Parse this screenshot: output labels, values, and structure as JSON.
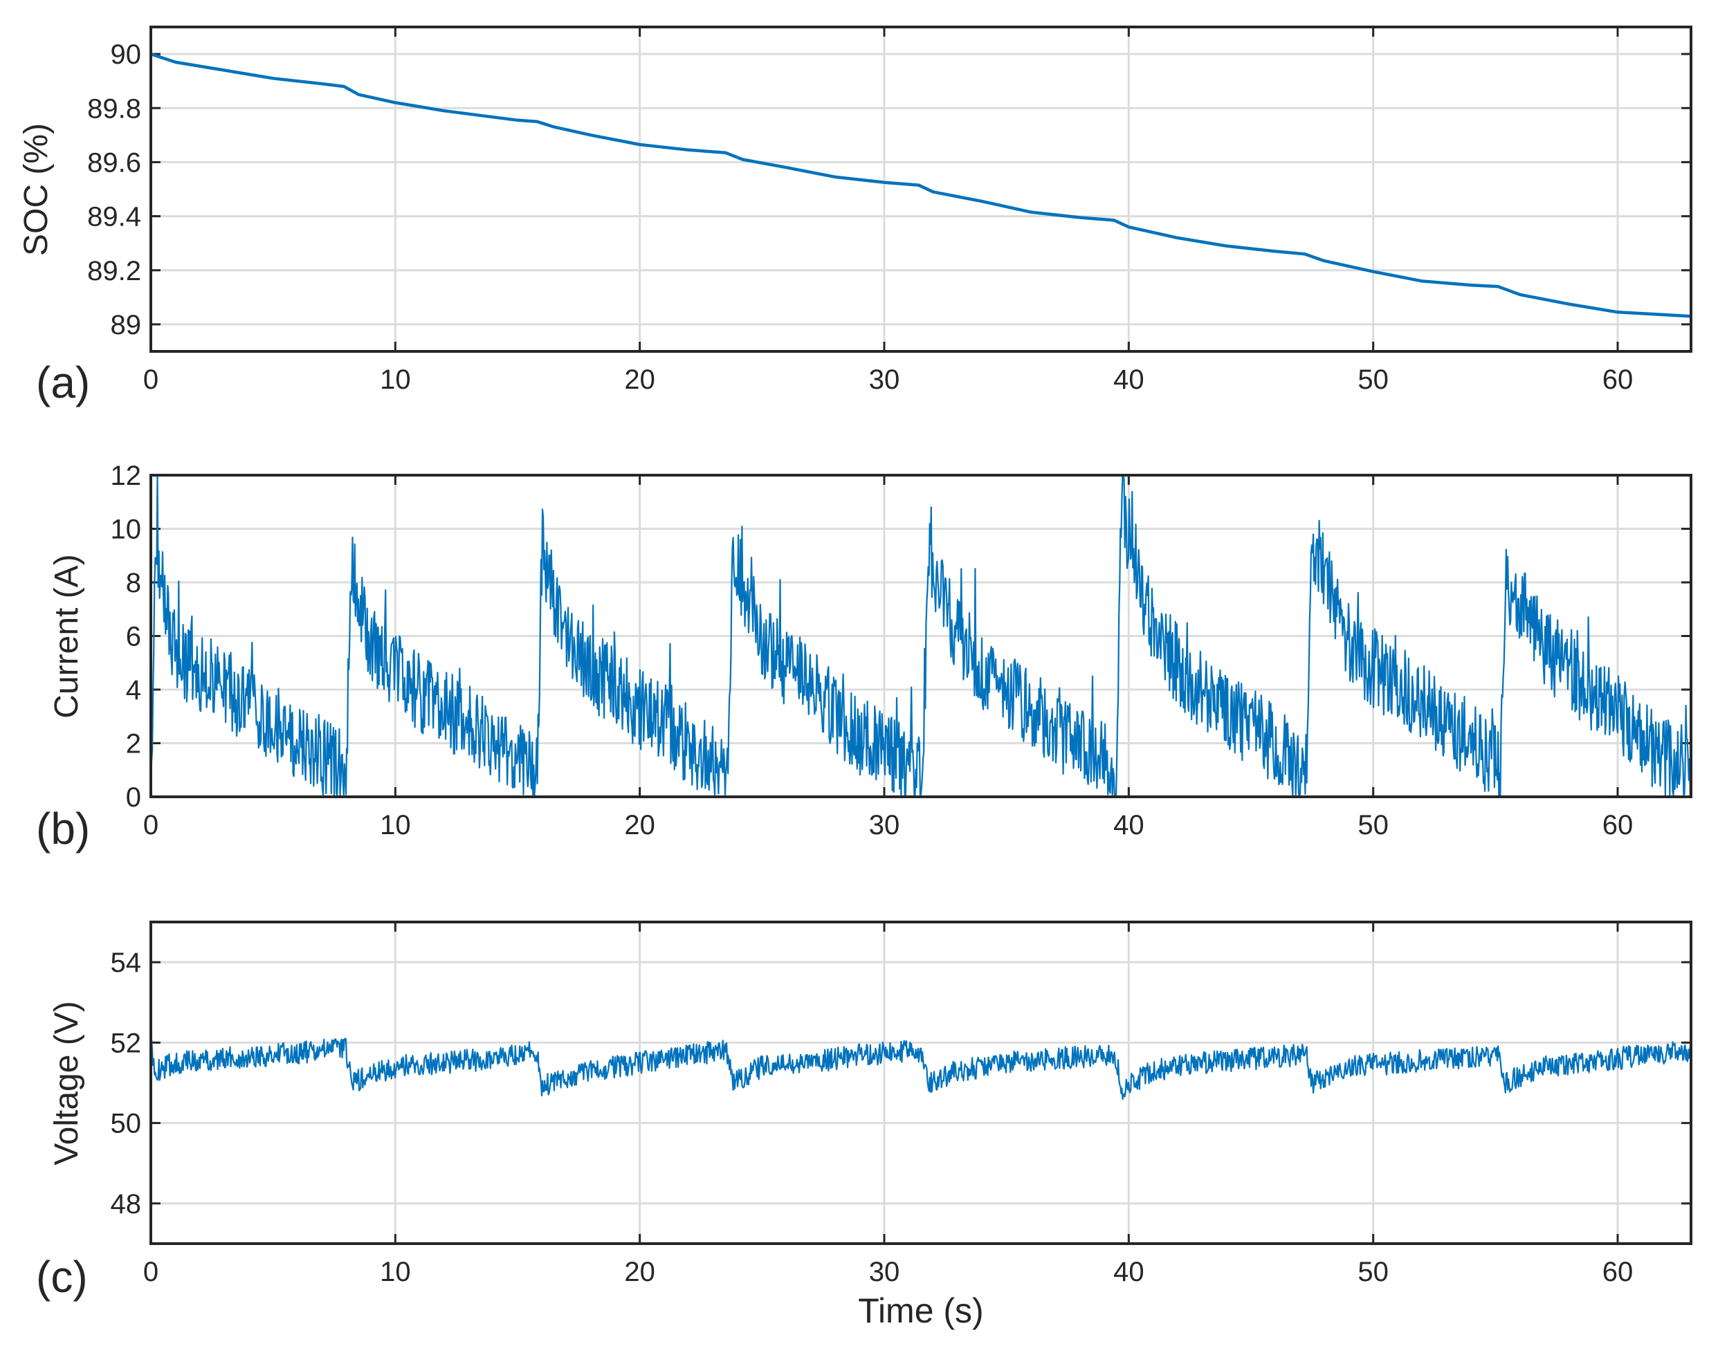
{
  "chart_data": [
    {
      "type": "line",
      "panel_label": "(a)",
      "ylabel": "SOC (%)",
      "xlabel": "",
      "xlim": [
        0,
        63
      ],
      "ylim": [
        88.9,
        90.1
      ],
      "xticks": [
        "0",
        "10",
        "20",
        "30",
        "40",
        "50",
        "60"
      ],
      "yticks": [
        "89",
        "89.2",
        "89.4",
        "89.6",
        "89.8",
        "90"
      ],
      "grid": true,
      "color": "#0072bd",
      "series": [
        {
          "x": [
            0,
            1,
            3,
            5,
            7,
            7.9,
            8.5,
            10,
            12,
            15,
            15.8,
            16.5,
            18,
            20,
            22,
            23.5,
            24.2,
            26,
            28,
            30,
            31.4,
            32,
            34,
            36,
            38,
            39.4,
            40,
            42,
            44,
            46,
            47.2,
            48,
            50,
            52,
            54,
            55.1,
            56,
            58,
            60,
            62,
            63
          ],
          "y": [
            90.0,
            89.97,
            89.94,
            89.91,
            89.89,
            89.88,
            89.85,
            89.82,
            89.79,
            89.755,
            89.75,
            89.73,
            89.7,
            89.665,
            89.645,
            89.635,
            89.61,
            89.58,
            89.545,
            89.525,
            89.515,
            89.49,
            89.455,
            89.415,
            89.395,
            89.385,
            89.36,
            89.32,
            89.29,
            89.27,
            89.26,
            89.235,
            89.195,
            89.16,
            89.145,
            89.14,
            89.11,
            89.075,
            89.045,
            89.035,
            89.03
          ]
        }
      ]
    },
    {
      "type": "line",
      "panel_label": "(b)",
      "ylabel": "Current (A)",
      "xlabel": "",
      "xlim": [
        0,
        63
      ],
      "ylim": [
        0,
        12
      ],
      "xticks": [
        "0",
        "10",
        "20",
        "30",
        "40",
        "50",
        "60"
      ],
      "yticks": [
        "0",
        "2",
        "4",
        "6",
        "8",
        "10",
        "12"
      ],
      "grid": true,
      "color": "#0072bd",
      "series": [
        {
          "x": [
            0,
            0.2,
            1,
            2,
            3,
            4,
            5,
            6,
            7,
            7.9,
            8.0,
            8.2,
            9,
            10,
            11,
            12,
            13,
            14,
            15,
            15.7,
            15.8,
            16.0,
            17,
            18,
            19,
            20,
            21,
            22,
            23,
            23.5,
            23.6,
            23.8,
            25,
            26,
            27,
            28,
            29,
            30,
            31,
            31.5,
            31.6,
            31.8,
            33,
            34,
            35,
            36,
            37,
            38,
            39,
            39.4,
            39.5,
            39.7,
            41,
            42,
            43,
            44,
            45,
            46,
            47,
            47.2,
            47.3,
            47.5,
            49,
            50,
            51,
            52,
            53,
            54,
            55,
            55.1,
            55.2,
            55.4,
            57,
            58,
            59,
            60,
            61,
            62,
            63
          ],
          "y": [
            0.2,
            9.0,
            5.2,
            4.5,
            4.0,
            3.2,
            2.6,
            2.0,
            1.4,
            0.9,
            0.7,
            8.7,
            5.4,
            4.5,
            3.8,
            3.1,
            2.6,
            2.0,
            1.3,
            0.8,
            0.6,
            9.2,
            5.6,
            4.6,
            3.9,
            3.1,
            2.5,
            1.8,
            1.1,
            0.8,
            0.6,
            8.8,
            5.8,
            4.7,
            4.0,
            3.0,
            2.1,
            1.6,
            1.1,
            0.8,
            0.6,
            9.0,
            5.8,
            4.6,
            3.9,
            3.1,
            2.3,
            1.6,
            1.1,
            0.8,
            0.7,
            10.7,
            6.0,
            4.8,
            3.7,
            3.0,
            2.4,
            1.8,
            1.1,
            0.8,
            0.7,
            9.4,
            5.6,
            4.6,
            4.1,
            3.4,
            2.7,
            1.9,
            1.2,
            0.8,
            0.7,
            8.0,
            5.5,
            4.5,
            3.7,
            3.0,
            2.0,
            1.3,
            0.9
          ]
        }
      ]
    },
    {
      "type": "line",
      "panel_label": "(c)",
      "ylabel": "Voltage (V)",
      "xlabel": "Time (s)",
      "xlim": [
        0,
        63
      ],
      "ylim": [
        47,
        55
      ],
      "xticks": [
        "0",
        "10",
        "20",
        "30",
        "40",
        "50",
        "60"
      ],
      "yticks": [
        "48",
        "50",
        "52",
        "54"
      ],
      "grid": true,
      "color": "#0072bd",
      "series": [
        {
          "x": [
            0,
            0.2,
            1,
            3,
            5,
            7,
            7.9,
            8.0,
            8.2,
            10,
            12,
            14,
            15.7,
            15.8,
            16.0,
            18,
            20,
            22,
            23.5,
            23.6,
            23.8,
            25,
            27,
            29,
            31.5,
            31.6,
            31.8,
            33,
            35,
            37,
            39.4,
            39.5,
            39.7,
            41,
            43,
            45,
            47.2,
            47.3,
            47.5,
            49,
            51,
            53,
            55.1,
            55.2,
            55.4,
            57,
            59,
            61,
            63
          ],
          "y": [
            51.9,
            51.3,
            51.5,
            51.6,
            51.7,
            51.8,
            51.9,
            51.8,
            51.0,
            51.4,
            51.5,
            51.6,
            51.8,
            51.7,
            50.9,
            51.3,
            51.5,
            51.7,
            51.8,
            51.7,
            51.0,
            51.4,
            51.5,
            51.7,
            51.8,
            51.7,
            51.0,
            51.3,
            51.5,
            51.6,
            51.7,
            51.6,
            50.8,
            51.3,
            51.5,
            51.6,
            51.7,
            51.6,
            51.0,
            51.4,
            51.5,
            51.6,
            51.7,
            51.6,
            51.0,
            51.4,
            51.5,
            51.7,
            51.8
          ]
        }
      ]
    }
  ]
}
